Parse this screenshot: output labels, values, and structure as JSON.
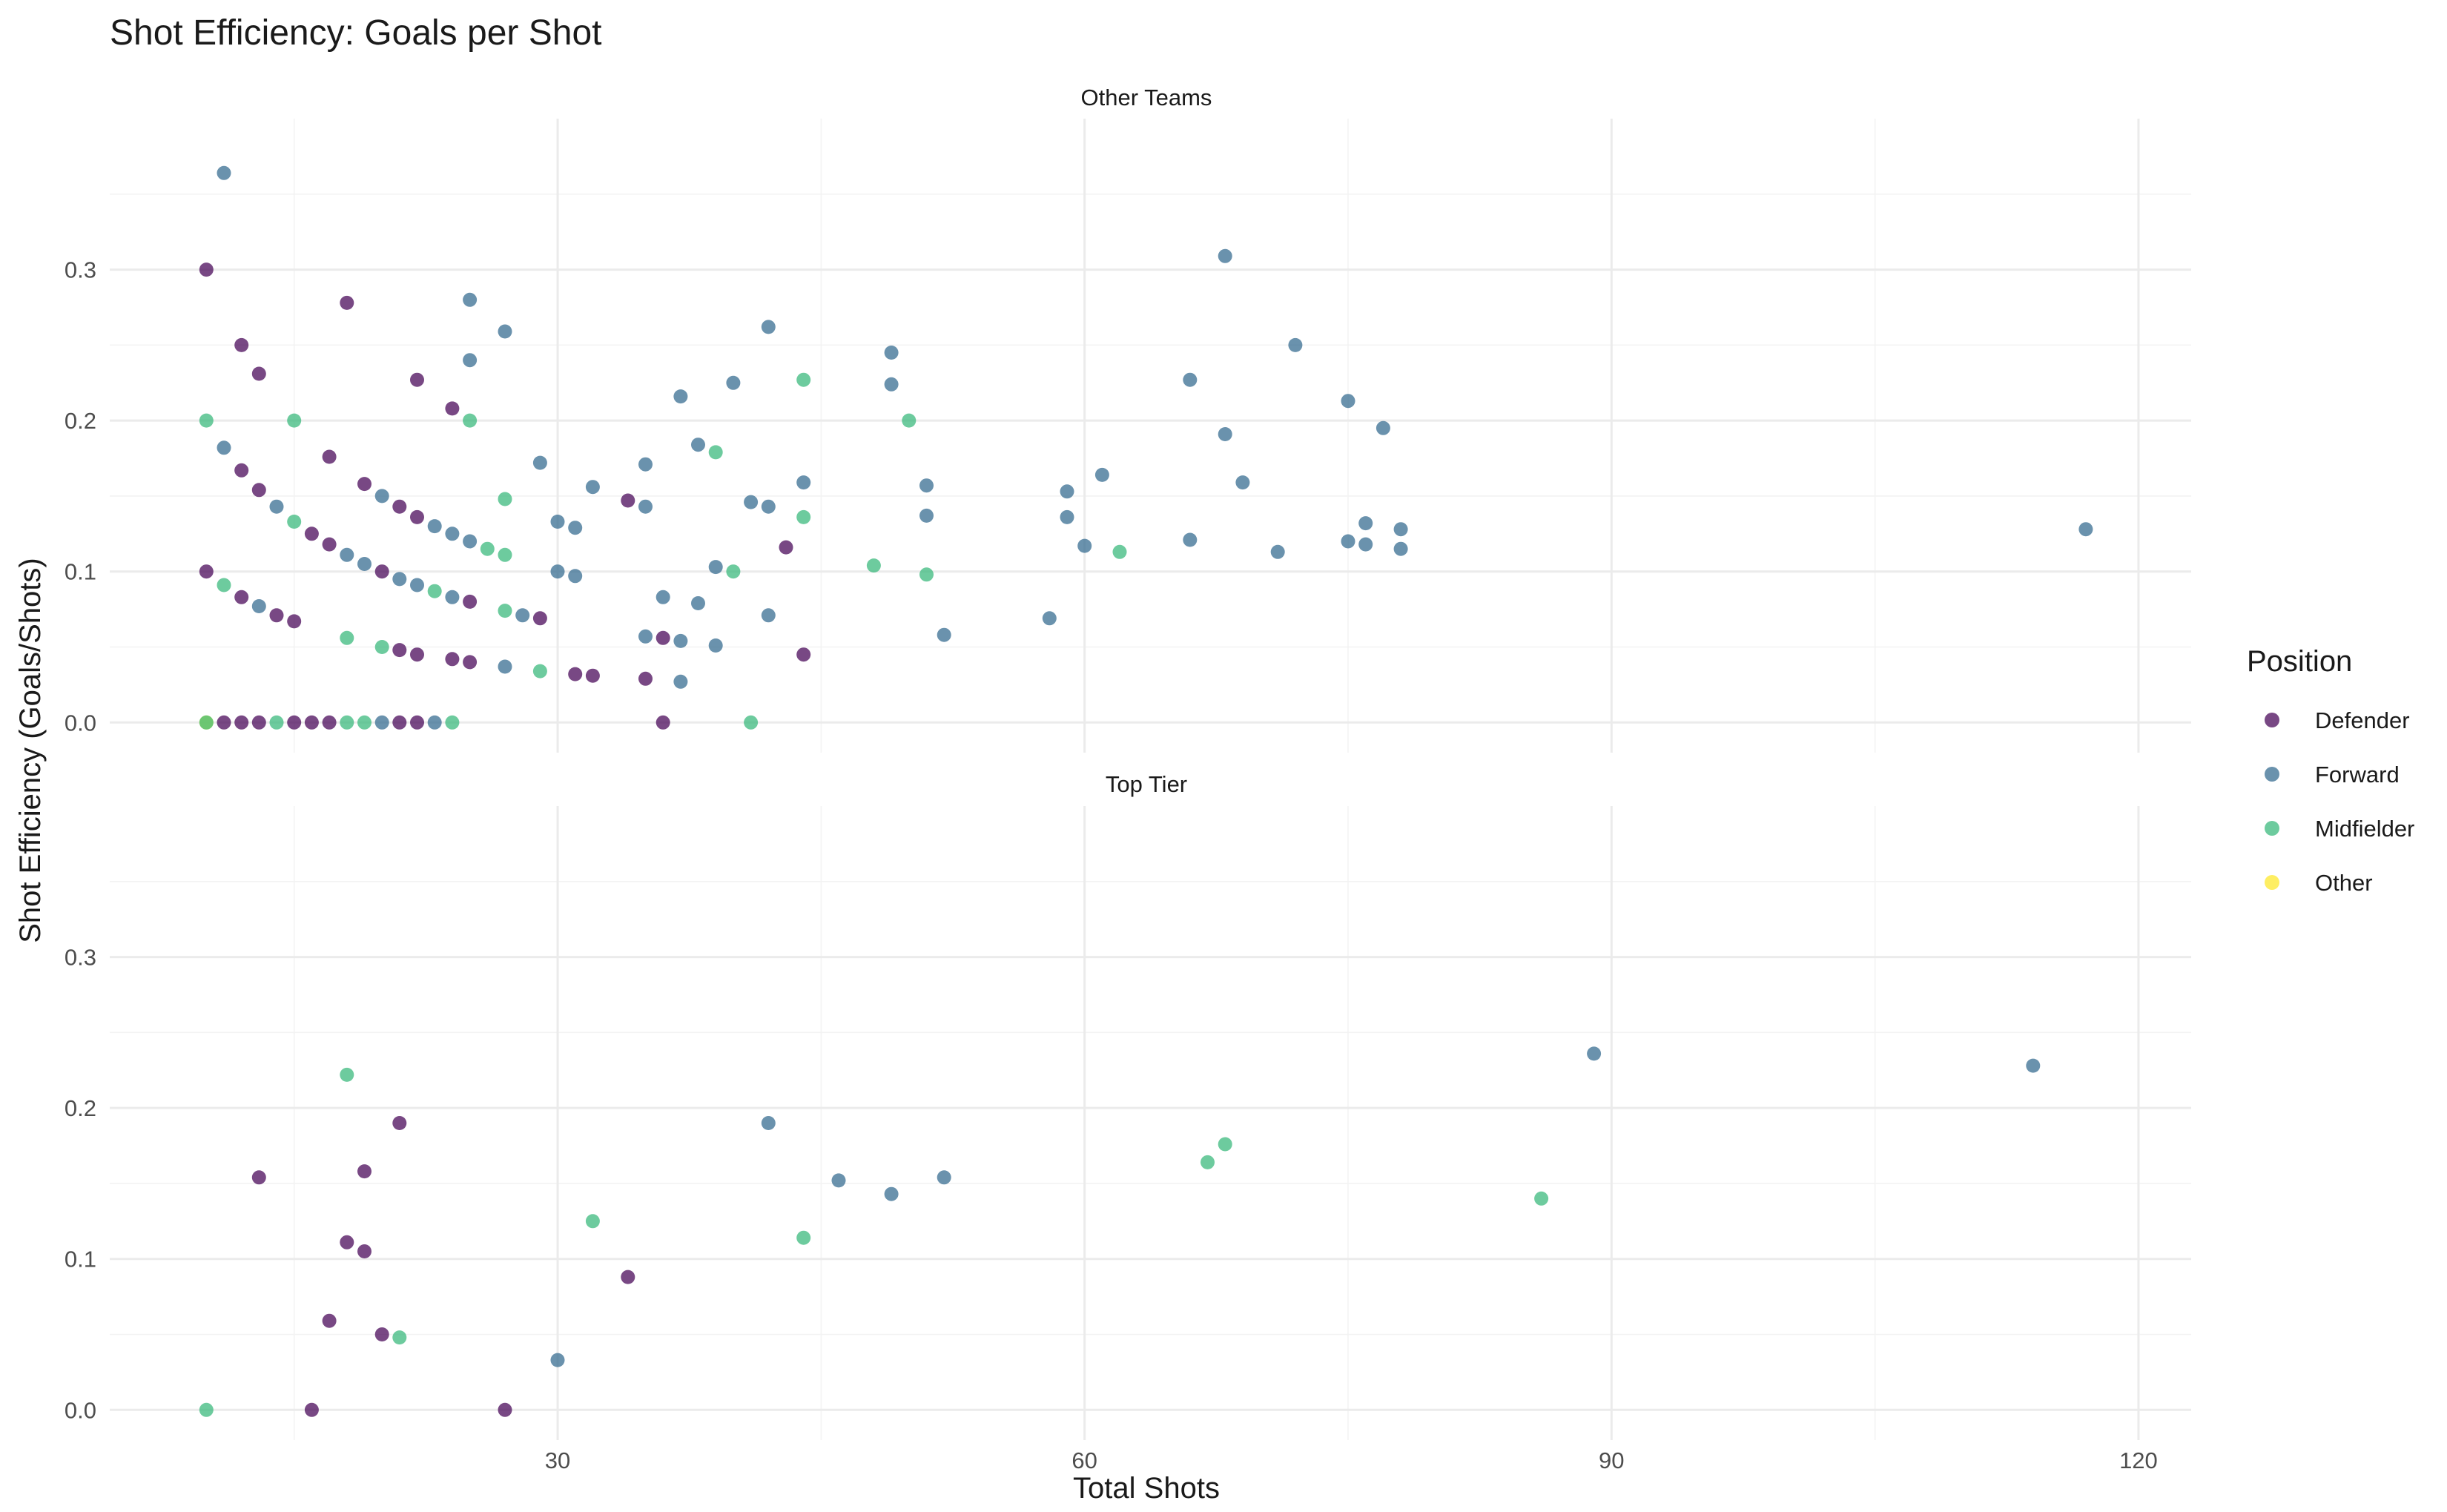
{
  "colors": {
    "Defender": "#440154",
    "Forward": "#31688E",
    "Midfielder": "#35B779",
    "Other": "#FDE725"
  },
  "chart_data": {
    "type": "scatter",
    "title": "Shot Efficiency: Goals per Shot",
    "xlabel": "Total Shots",
    "ylabel": "Shot Efficiency (Goals/Shots)",
    "xlim": [
      4.5,
      123
    ],
    "ylim": [
      -0.02,
      0.4
    ],
    "x_ticks": [
      30,
      60,
      90,
      120
    ],
    "y_ticks": [
      0.0,
      0.1,
      0.2,
      0.3
    ],
    "x_tick_labels": [
      "30",
      "60",
      "90",
      "120"
    ],
    "y_tick_labels": [
      "0.0",
      "0.1",
      "0.2",
      "0.3"
    ],
    "grid": true,
    "legend": {
      "title": "Position",
      "placement": "right",
      "entries": [
        "Defender",
        "Forward",
        "Midfielder",
        "Other"
      ]
    },
    "facets": [
      {
        "label": "Other Teams",
        "points": [
          [
            11,
            0.364,
            "Forward"
          ],
          [
            10,
            0.3,
            "Defender"
          ],
          [
            10,
            0.2,
            "Midfielder"
          ],
          [
            10,
            0.1,
            "Defender"
          ],
          [
            10,
            0.0,
            "Other"
          ],
          [
            10,
            0.0,
            "Midfielder"
          ],
          [
            11,
            0.182,
            "Forward"
          ],
          [
            11,
            0.091,
            "Midfielder"
          ],
          [
            11,
            0.0,
            "Defender"
          ],
          [
            12,
            0.25,
            "Defender"
          ],
          [
            12,
            0.167,
            "Defender"
          ],
          [
            12,
            0.083,
            "Defender"
          ],
          [
            12,
            0.0,
            "Defender"
          ],
          [
            13,
            0.231,
            "Defender"
          ],
          [
            13,
            0.154,
            "Defender"
          ],
          [
            13,
            0.077,
            "Forward"
          ],
          [
            13,
            0.0,
            "Defender"
          ],
          [
            14,
            0.143,
            "Forward"
          ],
          [
            14,
            0.071,
            "Defender"
          ],
          [
            14,
            0.0,
            "Midfielder"
          ],
          [
            15,
            0.2,
            "Midfielder"
          ],
          [
            15,
            0.133,
            "Midfielder"
          ],
          [
            15,
            0.067,
            "Defender"
          ],
          [
            15,
            0.0,
            "Defender"
          ],
          [
            16,
            0.125,
            "Defender"
          ],
          [
            16,
            0.0,
            "Defender"
          ],
          [
            17,
            0.176,
            "Defender"
          ],
          [
            17,
            0.118,
            "Defender"
          ],
          [
            17,
            0.0,
            "Defender"
          ],
          [
            18,
            0.278,
            "Defender"
          ],
          [
            18,
            0.111,
            "Forward"
          ],
          [
            18,
            0.056,
            "Midfielder"
          ],
          [
            18,
            0.0,
            "Midfielder"
          ],
          [
            19,
            0.158,
            "Defender"
          ],
          [
            19,
            0.105,
            "Forward"
          ],
          [
            19,
            0.0,
            "Midfielder"
          ],
          [
            20,
            0.15,
            "Forward"
          ],
          [
            20,
            0.1,
            "Defender"
          ],
          [
            20,
            0.05,
            "Midfielder"
          ],
          [
            20,
            0.0,
            "Forward"
          ],
          [
            21,
            0.143,
            "Defender"
          ],
          [
            21,
            0.095,
            "Forward"
          ],
          [
            21,
            0.048,
            "Defender"
          ],
          [
            21,
            0.0,
            "Defender"
          ],
          [
            22,
            0.227,
            "Defender"
          ],
          [
            22,
            0.136,
            "Defender"
          ],
          [
            22,
            0.091,
            "Forward"
          ],
          [
            22,
            0.045,
            "Defender"
          ],
          [
            22,
            0.0,
            "Defender"
          ],
          [
            23,
            0.13,
            "Forward"
          ],
          [
            23,
            0.087,
            "Midfielder"
          ],
          [
            23,
            0.0,
            "Forward"
          ],
          [
            24,
            0.208,
            "Defender"
          ],
          [
            24,
            0.125,
            "Forward"
          ],
          [
            24,
            0.083,
            "Forward"
          ],
          [
            24,
            0.042,
            "Defender"
          ],
          [
            24,
            0.0,
            "Midfielder"
          ],
          [
            25,
            0.28,
            "Forward"
          ],
          [
            25,
            0.24,
            "Forward"
          ],
          [
            25,
            0.2,
            "Midfielder"
          ],
          [
            25,
            0.12,
            "Forward"
          ],
          [
            25,
            0.08,
            "Defender"
          ],
          [
            25,
            0.04,
            "Defender"
          ],
          [
            26,
            0.115,
            "Midfielder"
          ],
          [
            27,
            0.259,
            "Forward"
          ],
          [
            27,
            0.148,
            "Midfielder"
          ],
          [
            27,
            0.111,
            "Midfielder"
          ],
          [
            27,
            0.074,
            "Midfielder"
          ],
          [
            27,
            0.037,
            "Forward"
          ],
          [
            28,
            0.071,
            "Forward"
          ],
          [
            29,
            0.172,
            "Forward"
          ],
          [
            29,
            0.069,
            "Defender"
          ],
          [
            29,
            0.034,
            "Midfielder"
          ],
          [
            30,
            0.133,
            "Forward"
          ],
          [
            30,
            0.1,
            "Forward"
          ],
          [
            31,
            0.129,
            "Forward"
          ],
          [
            31,
            0.097,
            "Forward"
          ],
          [
            31,
            0.032,
            "Defender"
          ],
          [
            32,
            0.156,
            "Forward"
          ],
          [
            32,
            0.031,
            "Defender"
          ],
          [
            34,
            0.147,
            "Defender"
          ],
          [
            35,
            0.171,
            "Forward"
          ],
          [
            35,
            0.143,
            "Forward"
          ],
          [
            35,
            0.057,
            "Forward"
          ],
          [
            35,
            0.029,
            "Defender"
          ],
          [
            36,
            0.083,
            "Forward"
          ],
          [
            36,
            0.056,
            "Defender"
          ],
          [
            36,
            0.0,
            "Defender"
          ],
          [
            37,
            0.216,
            "Forward"
          ],
          [
            37,
            0.054,
            "Forward"
          ],
          [
            37,
            0.027,
            "Forward"
          ],
          [
            38,
            0.184,
            "Forward"
          ],
          [
            38,
            0.079,
            "Forward"
          ],
          [
            39,
            0.179,
            "Midfielder"
          ],
          [
            39,
            0.103,
            "Forward"
          ],
          [
            39,
            0.051,
            "Forward"
          ],
          [
            40,
            0.225,
            "Forward"
          ],
          [
            40,
            0.1,
            "Midfielder"
          ],
          [
            41,
            0.146,
            "Forward"
          ],
          [
            41,
            0.0,
            "Midfielder"
          ],
          [
            42,
            0.262,
            "Forward"
          ],
          [
            42,
            0.143,
            "Forward"
          ],
          [
            42,
            0.071,
            "Forward"
          ],
          [
            43,
            0.116,
            "Defender"
          ],
          [
            44,
            0.227,
            "Midfielder"
          ],
          [
            44,
            0.159,
            "Forward"
          ],
          [
            44,
            0.136,
            "Midfielder"
          ],
          [
            44,
            0.045,
            "Defender"
          ],
          [
            48,
            0.104,
            "Midfielder"
          ],
          [
            49,
            0.245,
            "Forward"
          ],
          [
            49,
            0.224,
            "Forward"
          ],
          [
            50,
            0.2,
            "Midfielder"
          ],
          [
            51,
            0.157,
            "Forward"
          ],
          [
            51,
            0.137,
            "Forward"
          ],
          [
            51,
            0.098,
            "Midfielder"
          ],
          [
            52,
            0.058,
            "Forward"
          ],
          [
            58,
            0.069,
            "Forward"
          ],
          [
            59,
            0.153,
            "Forward"
          ],
          [
            59,
            0.136,
            "Forward"
          ],
          [
            60,
            0.117,
            "Forward"
          ],
          [
            61,
            0.164,
            "Forward"
          ],
          [
            62,
            0.113,
            "Midfielder"
          ],
          [
            66,
            0.227,
            "Forward"
          ],
          [
            66,
            0.121,
            "Forward"
          ],
          [
            68,
            0.309,
            "Forward"
          ],
          [
            68,
            0.191,
            "Forward"
          ],
          [
            69,
            0.159,
            "Forward"
          ],
          [
            71,
            0.113,
            "Forward"
          ],
          [
            72,
            0.25,
            "Forward"
          ],
          [
            75,
            0.213,
            "Forward"
          ],
          [
            75,
            0.12,
            "Forward"
          ],
          [
            76,
            0.132,
            "Forward"
          ],
          [
            76,
            0.118,
            "Forward"
          ],
          [
            77,
            0.195,
            "Forward"
          ],
          [
            78,
            0.128,
            "Forward"
          ],
          [
            78,
            0.115,
            "Forward"
          ],
          [
            117,
            0.128,
            "Forward"
          ]
        ]
      },
      {
        "label": "Top Tier",
        "points": [
          [
            10,
            0.0,
            "Midfielder"
          ],
          [
            13,
            0.154,
            "Defender"
          ],
          [
            16,
            0.0,
            "Defender"
          ],
          [
            17,
            0.059,
            "Defender"
          ],
          [
            18,
            0.222,
            "Midfielder"
          ],
          [
            18,
            0.111,
            "Defender"
          ],
          [
            19,
            0.158,
            "Defender"
          ],
          [
            19,
            0.105,
            "Defender"
          ],
          [
            20,
            0.05,
            "Defender"
          ],
          [
            21,
            0.19,
            "Defender"
          ],
          [
            21,
            0.048,
            "Midfielder"
          ],
          [
            27,
            0.0,
            "Defender"
          ],
          [
            30,
            0.033,
            "Forward"
          ],
          [
            32,
            0.125,
            "Midfielder"
          ],
          [
            34,
            0.088,
            "Defender"
          ],
          [
            42,
            0.19,
            "Forward"
          ],
          [
            44,
            0.114,
            "Midfielder"
          ],
          [
            46,
            0.152,
            "Forward"
          ],
          [
            49,
            0.143,
            "Forward"
          ],
          [
            52,
            0.154,
            "Forward"
          ],
          [
            67,
            0.164,
            "Midfielder"
          ],
          [
            68,
            0.176,
            "Midfielder"
          ],
          [
            86,
            0.14,
            "Midfielder"
          ],
          [
            89,
            0.236,
            "Forward"
          ],
          [
            114,
            0.228,
            "Forward"
          ]
        ]
      }
    ]
  }
}
